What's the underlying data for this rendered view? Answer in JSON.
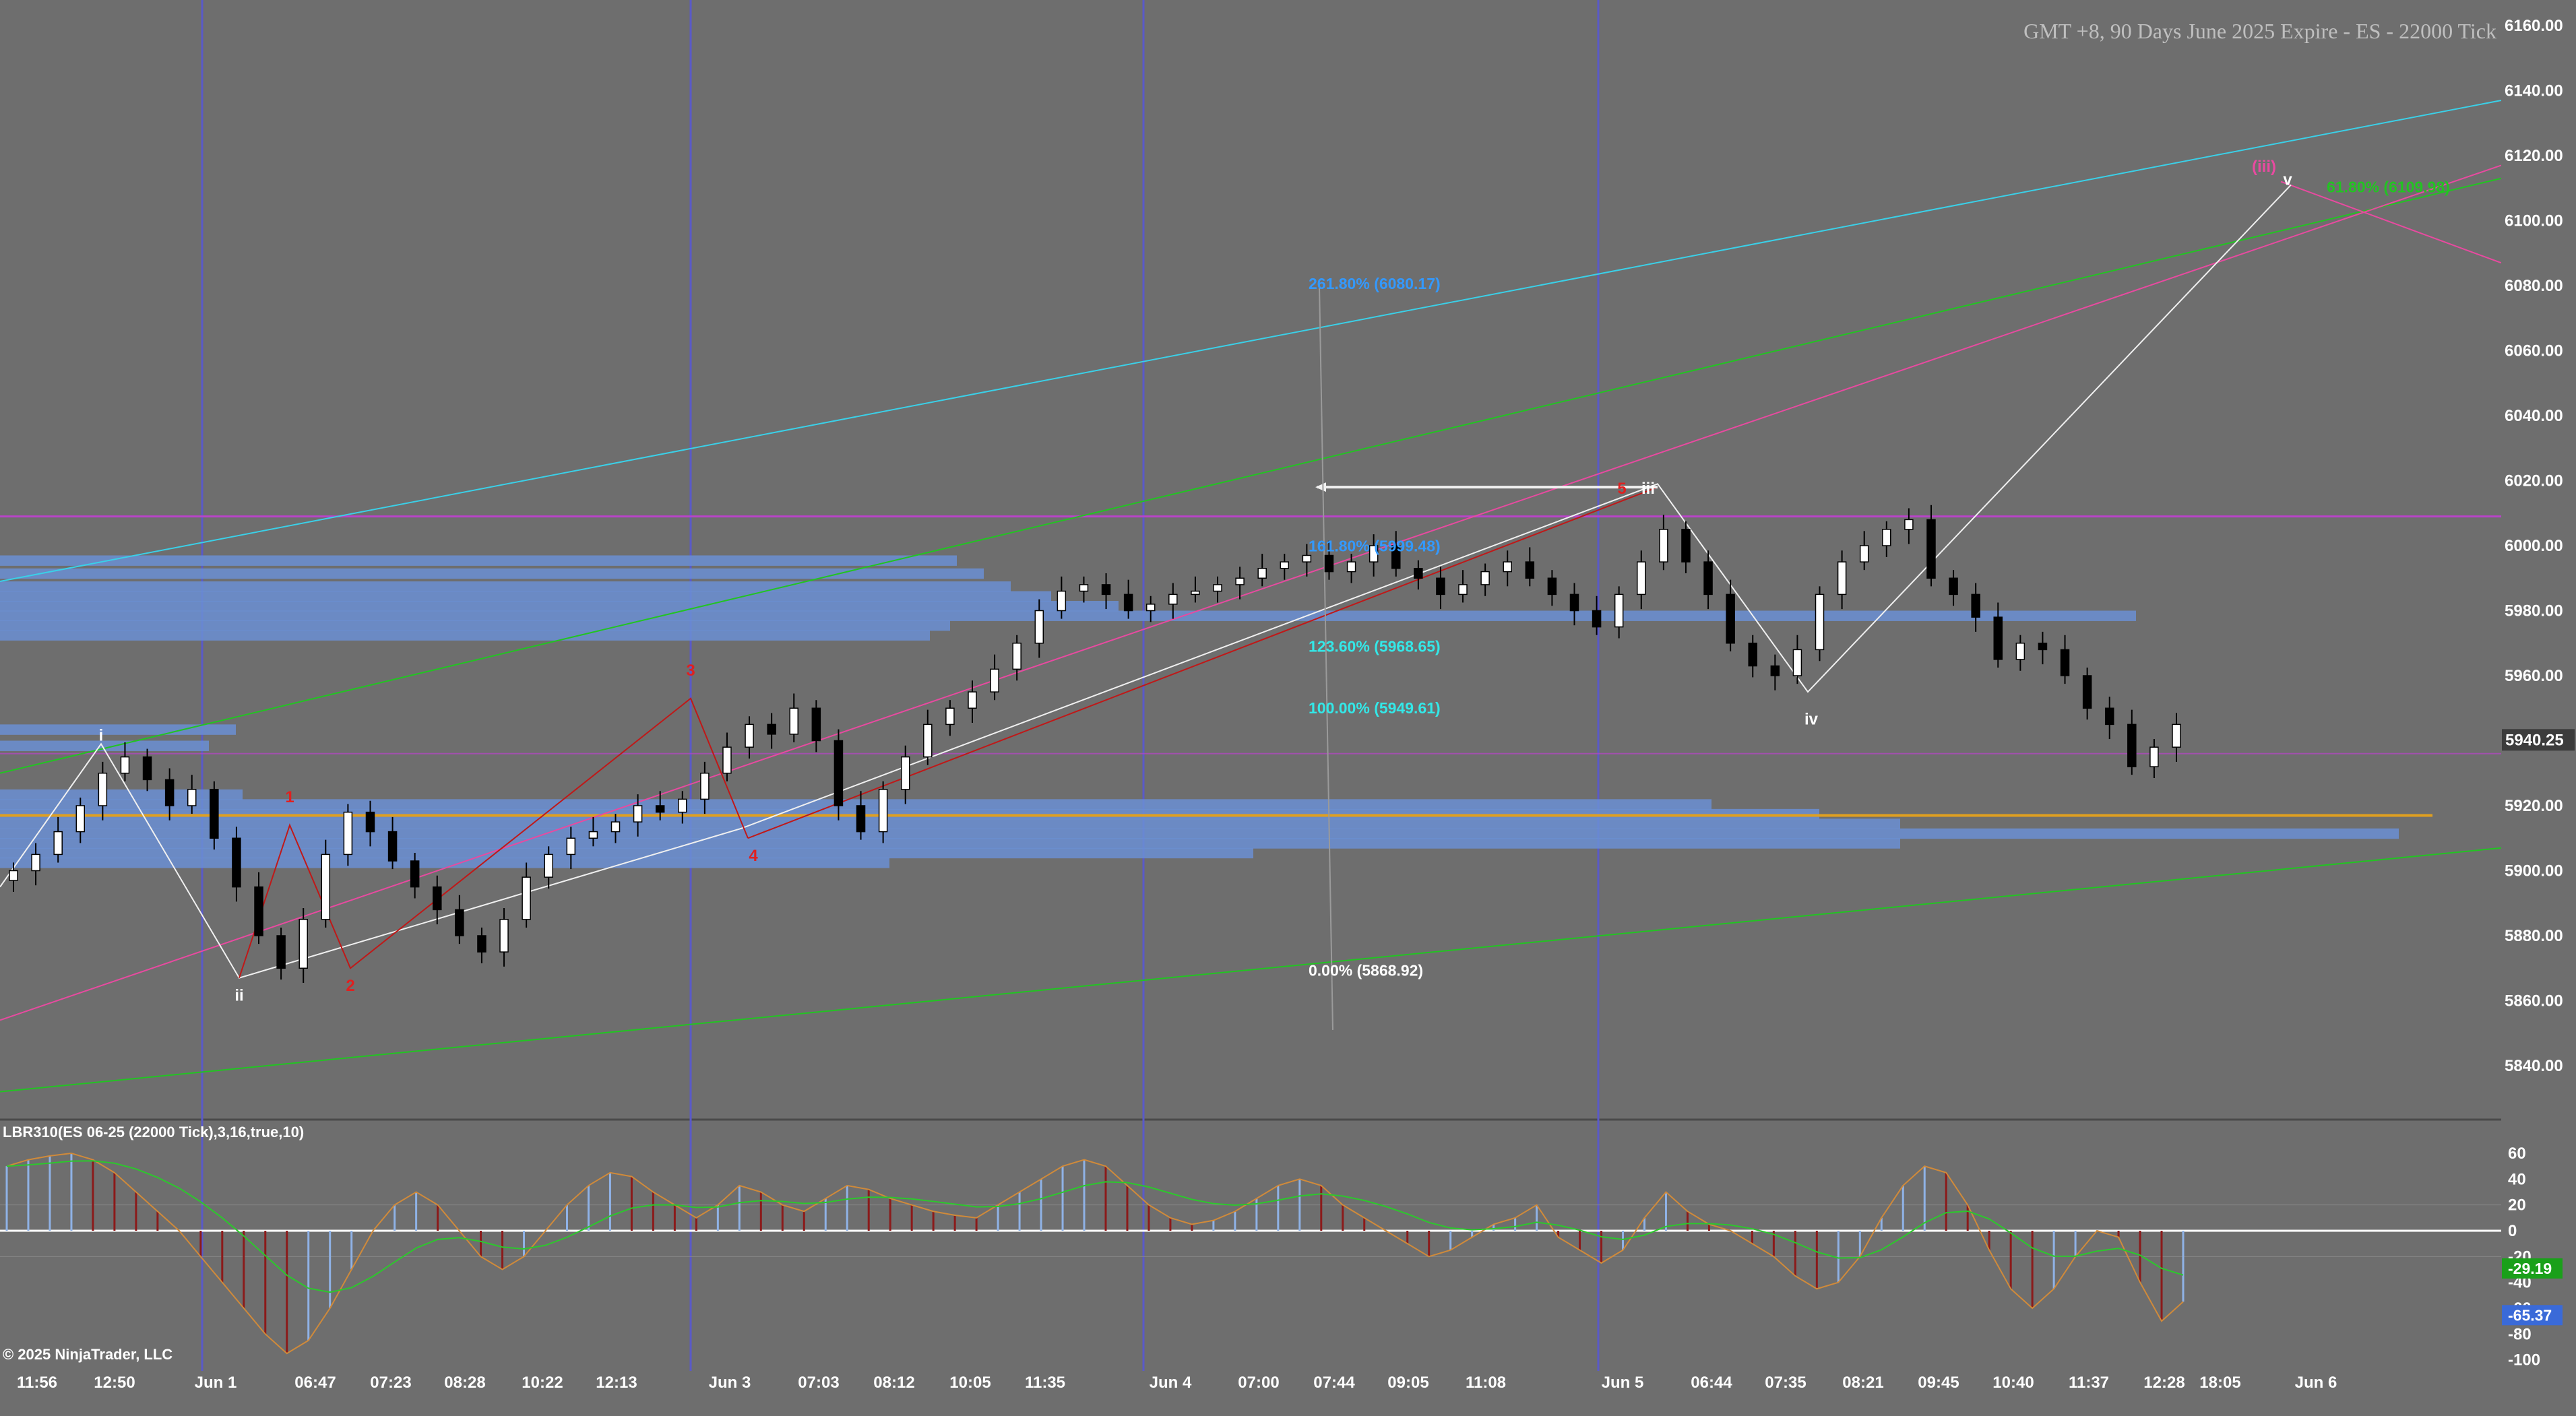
{
  "header": {
    "title": "GMT +8, 90 Days June 2025 Expire  - ES - 22000 Tick"
  },
  "indicator": {
    "title": "LBR310(ES 06-25 (22000 Tick),3,16,true,10)"
  },
  "footer": {
    "copyright": "© 2025 NinjaTrader, LLC"
  },
  "colors": {
    "background": "#6e6e6e",
    "bull": "#ffffff",
    "bear": "#000000",
    "cyan_line": "#3ad0e8",
    "green_line": "#22c422",
    "pink_line": "#e84aa0",
    "red_line": "#c01818",
    "white_line": "#f0f0f0",
    "volume_profile": "#6b8fd4",
    "gold_line": "#e0a020",
    "magenta_line": "#b844c8",
    "session_line": "#5a5ac8",
    "fib_blue": "#3399ff",
    "fib_cyan": "#33e8e8",
    "fib_orange": "#e06a20",
    "price_marker": "#3c3c3c",
    "osc_green_label": "#1aa01a",
    "osc_blue_label": "#3a6ad8"
  },
  "chart_data": [
    {
      "type": "candlestick",
      "title": "GMT +8, 90 Days June 2025 Expire  - ES - 22000 Tick",
      "x_tick_labels": [
        "11:56",
        "12:50",
        "Jun 1",
        "06:47",
        "07:23",
        "08:28",
        "10:22",
        "12:13",
        "Jun 3",
        "07:03",
        "08:12",
        "10:05",
        "11:35",
        "Jun 4",
        "07:00",
        "07:44",
        "09:05",
        "11:08",
        "Jun 5",
        "06:44",
        "07:35",
        "08:21",
        "09:45",
        "10:40",
        "11:37",
        "12:28",
        "18:05",
        "Jun 6"
      ],
      "y_ticks": [
        5840,
        5860,
        5880,
        5900,
        5920,
        5940,
        5960,
        5980,
        6000,
        6020,
        6040,
        6060,
        6080,
        6100,
        6120,
        6140,
        6160
      ],
      "y_tick_labels": [
        "5840.00",
        "5860.00",
        "5880.00",
        "5900.00",
        "5920.00",
        "5940.00",
        "5960.00",
        "5980.00",
        "6000.00",
        "6020.00",
        "6040.00",
        "6060.00",
        "6080.00",
        "6100.00",
        "6120.00",
        "6140.00",
        "6160.00"
      ],
      "ylim": [
        5828,
        6166
      ],
      "last_price": 5940.25,
      "last_price_label": "5940.25",
      "close_series": [
        5900,
        5905,
        5912,
        5920,
        5930,
        5935,
        5928,
        5920,
        5925,
        5910,
        5895,
        5880,
        5870,
        5885,
        5905,
        5918,
        5912,
        5903,
        5895,
        5888,
        5880,
        5875,
        5885,
        5898,
        5905,
        5910,
        5912,
        5915,
        5920,
        5918,
        5922,
        5930,
        5938,
        5945,
        5942,
        5950,
        5940,
        5920,
        5912,
        5925,
        5935,
        5945,
        5950,
        5955,
        5962,
        5970,
        5980,
        5986,
        5988,
        5985,
        5980,
        5982,
        5985,
        5986,
        5988,
        5990,
        5993,
        5995,
        5997,
        5992,
        5995,
        6000,
        5993,
        5990,
        5985,
        5988,
        5992,
        5995,
        5990,
        5985,
        5980,
        5975,
        5985,
        5995,
        6005,
        5995,
        5985,
        5970,
        5963,
        5960,
        5968,
        5985,
        5995,
        6000,
        6005,
        6008,
        5990,
        5985,
        5978,
        5965,
        5970,
        5968,
        5960,
        5950,
        5945,
        5932,
        5938,
        5945
      ],
      "fib_levels": [
        {
          "label": "261.80% (6080.17)",
          "value": 6080.17
        },
        {
          "label": "161.80% (5999.48)",
          "value": 5999.48
        },
        {
          "label": "123.60% (5968.65)",
          "value": 5968.65
        },
        {
          "label": "100.00% (5949.61)",
          "value": 5949.61
        },
        {
          "label": "0.00% (5868.92)",
          "value": 5868.92
        },
        {
          "label": "61.80% (6109.98)",
          "value": 6109.98
        }
      ],
      "wave_labels": [
        {
          "text": "i",
          "x": 0.1
        },
        {
          "text": "ii",
          "x": 11.5
        },
        {
          "text": "1",
          "x": 14
        },
        {
          "text": "2",
          "x": 17
        },
        {
          "text": "3",
          "x": 33
        },
        {
          "text": "4",
          "x": 36
        },
        {
          "text": "5",
          "x": 78
        },
        {
          "text": "iii",
          "x": 79
        },
        {
          "text": "iv",
          "x": 87
        },
        {
          "text": "(iii)",
          "x": 108.5
        },
        {
          "text": "v",
          "x": 110
        }
      ]
    },
    {
      "type": "histogram",
      "title": "LBR310(ES 06-25 (22000 Tick),3,16,true,10)",
      "y_ticks": [
        60,
        40,
        20,
        0,
        -20,
        -40,
        -60,
        -80,
        -100
      ],
      "y_tick_labels": [
        "60",
        "40",
        "20",
        "0",
        "-20",
        "-40",
        "-60",
        "-80",
        "-100"
      ],
      "ylim": [
        -112,
        70
      ],
      "current_values": [
        {
          "label": "-29.19",
          "value": -29.19
        },
        {
          "label": "-65.37",
          "value": -65.37
        }
      ],
      "series": [
        {
          "values": [
            50,
            55,
            58,
            60,
            55,
            45,
            30,
            15,
            0,
            -20,
            -40,
            -60,
            -80,
            -95,
            -85,
            -60,
            -30,
            0,
            20,
            30,
            20,
            0,
            -20,
            -30,
            -20,
            0,
            20,
            35,
            45,
            42,
            30,
            20,
            10,
            20,
            35,
            30,
            20,
            15,
            25,
            35,
            32,
            25,
            20,
            15,
            12,
            10,
            20,
            30,
            40,
            50,
            55,
            50,
            35,
            20,
            10,
            5,
            8,
            15,
            25,
            35,
            40,
            35,
            20,
            10,
            0,
            -10,
            -20,
            -15,
            -5,
            5,
            10,
            20,
            -5,
            -15,
            -25,
            -15,
            10,
            30,
            15,
            5,
            0,
            -10,
            -20,
            -35,
            -45,
            -40,
            -20,
            10,
            35,
            50,
            45,
            20,
            -15,
            -45,
            -60,
            -45,
            -20,
            0,
            -5,
            -40,
            -70,
            -55
          ]
        }
      ]
    }
  ]
}
